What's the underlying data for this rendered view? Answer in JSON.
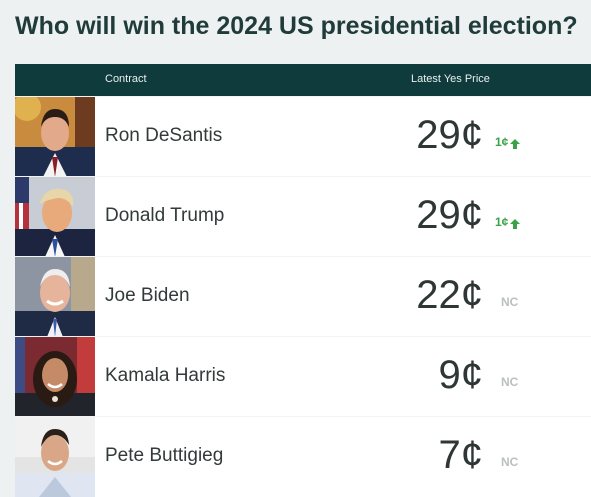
{
  "page": {
    "title": "Who will win the 2024 US presidential election?"
  },
  "table": {
    "columns": {
      "contract": "Contract",
      "price": "Latest Yes Price"
    },
    "rows": [
      {
        "name": "Ron DeSantis",
        "price": "29¢",
        "change": "1¢",
        "change_direction": "up",
        "photo_icon": "candidate-photo"
      },
      {
        "name": "Donald Trump",
        "price": "29¢",
        "change": "1¢",
        "change_direction": "up",
        "photo_icon": "candidate-photo"
      },
      {
        "name": "Joe Biden",
        "price": "22¢",
        "change": "NC",
        "change_direction": "none",
        "photo_icon": "candidate-photo"
      },
      {
        "name": "Kamala Harris",
        "price": "9¢",
        "change": "NC",
        "change_direction": "none",
        "photo_icon": "candidate-photo"
      },
      {
        "name": "Pete Buttigieg",
        "price": "7¢",
        "change": "NC",
        "change_direction": "none",
        "photo_icon": "candidate-photo"
      }
    ]
  },
  "colors": {
    "header_bg": "#0f3b3c",
    "up": "#3ba347",
    "no_change": "#b9c0c0",
    "title": "#1f3b3a"
  }
}
